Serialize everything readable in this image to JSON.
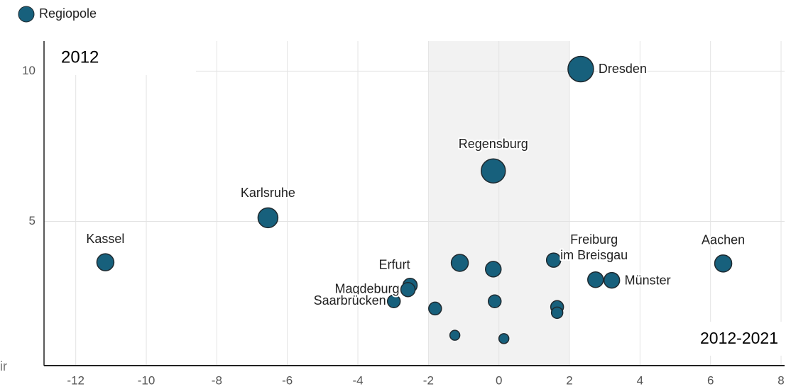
{
  "chart_data": {
    "type": "scatter",
    "y_title": "2012",
    "x_title": "2012-2021",
    "stray_text": "ir",
    "xlim": [
      -12.9,
      8.1
    ],
    "ylim": [
      0.2,
      11
    ],
    "xticks": [
      -12,
      -10,
      -8,
      -6,
      -4,
      -2,
      0,
      2,
      4,
      6,
      8
    ],
    "yticks": [
      5,
      10
    ],
    "highlight_band": [
      -2,
      2
    ],
    "grid": true,
    "legend": "top-left",
    "series": [
      {
        "name": "Regiopole",
        "color": "#17607c",
        "labels": [
          "Dresden",
          "Regensburg",
          "Karlsruhe",
          "Kassel",
          "Aachen",
          "Freiburg im Breisgau",
          "Münster",
          null,
          "Erfurt",
          "Magdeburg",
          "Saarbrücken",
          null,
          null,
          null,
          null,
          null,
          null,
          null,
          null
        ],
        "x": [
          2.32,
          -0.16,
          -6.55,
          -11.16,
          6.36,
          1.55,
          3.2,
          2.74,
          -2.52,
          -2.58,
          -2.98,
          -1.11,
          -0.16,
          -0.12,
          -1.81,
          1.65,
          1.65,
          -1.25,
          0.14
        ],
        "values": [
          10.07,
          6.68,
          5.12,
          3.64,
          3.6,
          3.71,
          3.04,
          3.06,
          2.87,
          2.73,
          2.34,
          3.62,
          3.41,
          2.34,
          2.1,
          2.15,
          1.96,
          1.21,
          1.1
        ],
        "sizes": [
          324,
          289,
          196,
          144,
          144,
          100,
          121,
          121,
          100,
          100,
          81,
          144,
          121,
          81,
          81,
          81,
          64,
          49,
          49
        ]
      }
    ]
  }
}
